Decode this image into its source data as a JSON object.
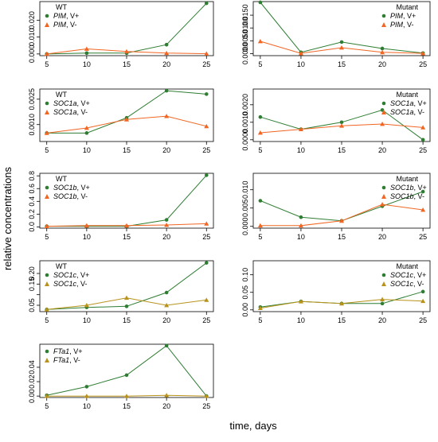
{
  "figure": {
    "ylabel": "relative concentrations",
    "xlabel": "time, days"
  },
  "colors": {
    "v_plus": "#2e7d32",
    "v_minus_orange": "#f26522",
    "v_minus_gold": "#b8921a"
  },
  "chart_data": [
    {
      "type": "line",
      "title": "WT",
      "gene": "PIM",
      "x": [
        5,
        10,
        15,
        20,
        25
      ],
      "xticks": [
        "5",
        "10",
        "15",
        "20",
        "25"
      ],
      "ylim": [
        -0.001,
        0.031
      ],
      "yticks": [
        0.0,
        0.01,
        0.02
      ],
      "ytick_labels": [
        "0.000",
        "0.010",
        "0.020"
      ],
      "legend_position": "top-left",
      "series": [
        {
          "name": "V+",
          "marker": "circle",
          "color": "#2e7d32",
          "values": [
            0.0,
            0.0005,
            0.0005,
            0.0055,
            0.03
          ]
        },
        {
          "name": "V-",
          "marker": "triangle",
          "color": "#f26522",
          "values": [
            0.0,
            0.003,
            0.0015,
            0.0005,
            0.0002
          ]
        }
      ]
    },
    {
      "type": "line",
      "title": "Mutant",
      "gene": "PIM",
      "x": [
        5,
        10,
        15,
        20,
        25
      ],
      "xticks": [
        "5",
        "10",
        "15",
        "20",
        "25"
      ],
      "ylim": [
        -0.0008,
        0.0203
      ],
      "yticks": [
        0.0,
        0.005,
        0.01,
        0.015
      ],
      "ytick_labels": [
        "0.0000",
        "0.0050",
        "0.0100",
        "0.0150"
      ],
      "legend_position": "top-right",
      "series": [
        {
          "name": "V+",
          "marker": "circle",
          "color": "#2e7d32",
          "values": [
            0.02,
            0.0005,
            0.0045,
            0.002,
            0.0002
          ]
        },
        {
          "name": "V-",
          "marker": "triangle",
          "color": "#f26522",
          "values": [
            0.0048,
            0.0001,
            0.0023,
            0.0005,
            0.0001
          ]
        }
      ]
    },
    {
      "type": "line",
      "title": "WT",
      "gene": "SOC1a",
      "x": [
        5,
        10,
        15,
        20,
        25
      ],
      "xticks": [
        "5",
        "10",
        "15",
        "20",
        "25"
      ],
      "ylim": [
        0.0,
        0.0031
      ],
      "yticks": [
        0.001,
        0.0025
      ],
      "ytick_labels": [
        "0.0010",
        "0.0025"
      ],
      "legend_position": "top-left",
      "series": [
        {
          "name": "V+",
          "marker": "circle",
          "color": "#2e7d32",
          "values": [
            0.0005,
            0.0005,
            0.0014,
            0.003,
            0.0028
          ]
        },
        {
          "name": "V-",
          "marker": "triangle",
          "color": "#f26522",
          "values": [
            0.0005,
            0.0008,
            0.0013,
            0.0015,
            0.0009
          ]
        }
      ]
    },
    {
      "type": "line",
      "title": "Mutant",
      "gene": "SOC1a",
      "x": [
        5,
        10,
        15,
        20,
        25
      ],
      "xticks": [
        "5",
        "10",
        "15",
        "20",
        "25"
      ],
      "ylim": [
        -0.0001,
        0.0029
      ],
      "yticks": [
        0.0,
        0.001,
        0.002
      ],
      "ytick_labels": [
        "0.0000",
        "0.0010",
        "0.0020"
      ],
      "legend_position": "top-right",
      "series": [
        {
          "name": "V+",
          "marker": "circle",
          "color": "#2e7d32",
          "values": [
            0.0013,
            0.0006,
            0.001,
            0.0017,
            0.0
          ]
        },
        {
          "name": "V-",
          "marker": "triangle",
          "color": "#f26522",
          "values": [
            0.0004,
            0.0006,
            0.0008,
            0.0009,
            0.0007
          ]
        }
      ]
    },
    {
      "type": "line",
      "title": "WT",
      "gene": "SOC1b",
      "x": [
        5,
        10,
        15,
        20,
        25
      ],
      "xticks": [
        "5",
        "10",
        "15",
        "20",
        "25"
      ],
      "ylim": [
        -0.02,
        0.84
      ],
      "yticks": [
        0.0,
        0.2,
        0.4,
        0.6,
        0.8
      ],
      "ytick_labels": [
        "0.0",
        "0.2",
        "0.4",
        "0.6",
        "0.8"
      ],
      "legend_position": "top-left",
      "series": [
        {
          "name": "V+",
          "marker": "circle",
          "color": "#2e7d32",
          "values": [
            0.01,
            0.01,
            0.01,
            0.11,
            0.81
          ]
        },
        {
          "name": "V-",
          "marker": "triangle",
          "color": "#f26522",
          "values": [
            0.01,
            0.02,
            0.02,
            0.03,
            0.05
          ]
        }
      ]
    },
    {
      "type": "line",
      "title": "Mutant",
      "gene": "SOC1b",
      "x": [
        5,
        10,
        15,
        20,
        25
      ],
      "xticks": [
        "5",
        "10",
        "15",
        "20",
        "25"
      ],
      "ylim": [
        -0.0005,
        0.0145
      ],
      "yticks": [
        0.0,
        0.005,
        0.01
      ],
      "ytick_labels": [
        "0.000",
        "0.005",
        "0.010"
      ],
      "legend_position": "top-right",
      "series": [
        {
          "name": "V+",
          "marker": "circle",
          "color": "#2e7d32",
          "values": [
            0.007,
            0.0025,
            0.0015,
            0.0055,
            0.0095
          ]
        },
        {
          "name": "V-",
          "marker": "triangle",
          "color": "#f26522",
          "values": [
            0.0002,
            0.0002,
            0.0015,
            0.006,
            0.0045
          ]
        }
      ]
    },
    {
      "type": "line",
      "title": "WT",
      "gene": "SOC1c",
      "x": [
        5,
        10,
        15,
        20,
        25
      ],
      "xticks": [
        "5",
        "10",
        "15",
        "20",
        "25"
      ],
      "ylim": [
        0.02,
        0.26
      ],
      "yticks": [
        0.05,
        0.1,
        0.15,
        0.2
      ],
      "ytick_labels": [
        "0.05",
        "",
        "0.15",
        "0.20"
      ],
      "legend_position": "top-left",
      "series": [
        {
          "name": "V+",
          "marker": "circle",
          "color": "#2e7d32",
          "values": [
            0.03,
            0.04,
            0.045,
            0.11,
            0.25
          ]
        },
        {
          "name": "V-",
          "marker": "triangle",
          "color": "#b8921a",
          "values": [
            0.03,
            0.05,
            0.085,
            0.05,
            0.075
          ]
        }
      ]
    },
    {
      "type": "line",
      "title": "Mutant",
      "gene": "SOC1c",
      "x": [
        5,
        10,
        15,
        20,
        25
      ],
      "xticks": [
        "5",
        "10",
        "15",
        "20",
        "25"
      ],
      "ylim": [
        -0.005,
        0.14
      ],
      "yticks": [
        0.0,
        0.05,
        0.1
      ],
      "ytick_labels": [
        "0.00",
        "0.05",
        "0.10"
      ],
      "legend_position": "top-right",
      "series": [
        {
          "name": "V+",
          "marker": "circle",
          "color": "#2e7d32",
          "values": [
            0.008,
            0.024,
            0.018,
            0.018,
            0.052
          ]
        },
        {
          "name": "V-",
          "marker": "triangle",
          "color": "#b8921a",
          "values": [
            0.005,
            0.024,
            0.018,
            0.03,
            0.025
          ]
        }
      ]
    },
    {
      "type": "line",
      "title": "",
      "gene": "FTa1",
      "x": [
        5,
        10,
        15,
        20,
        25
      ],
      "xticks": [
        "5",
        "10",
        "15",
        "20",
        "25"
      ],
      "ylim": [
        -0.002,
        0.072
      ],
      "yticks": [
        0.0,
        0.02,
        0.04
      ],
      "ytick_labels": [
        "0.00",
        "0.02",
        "0.04"
      ],
      "legend_position": "top-left",
      "series": [
        {
          "name": "V+",
          "marker": "circle",
          "color": "#2e7d32",
          "values": [
            0.001,
            0.013,
            0.029,
            0.07,
            0.0
          ]
        },
        {
          "name": "V-",
          "marker": "triangle",
          "color": "#b8921a",
          "values": [
            0.0,
            0.0,
            0.0,
            0.001,
            0.0
          ]
        }
      ]
    }
  ]
}
